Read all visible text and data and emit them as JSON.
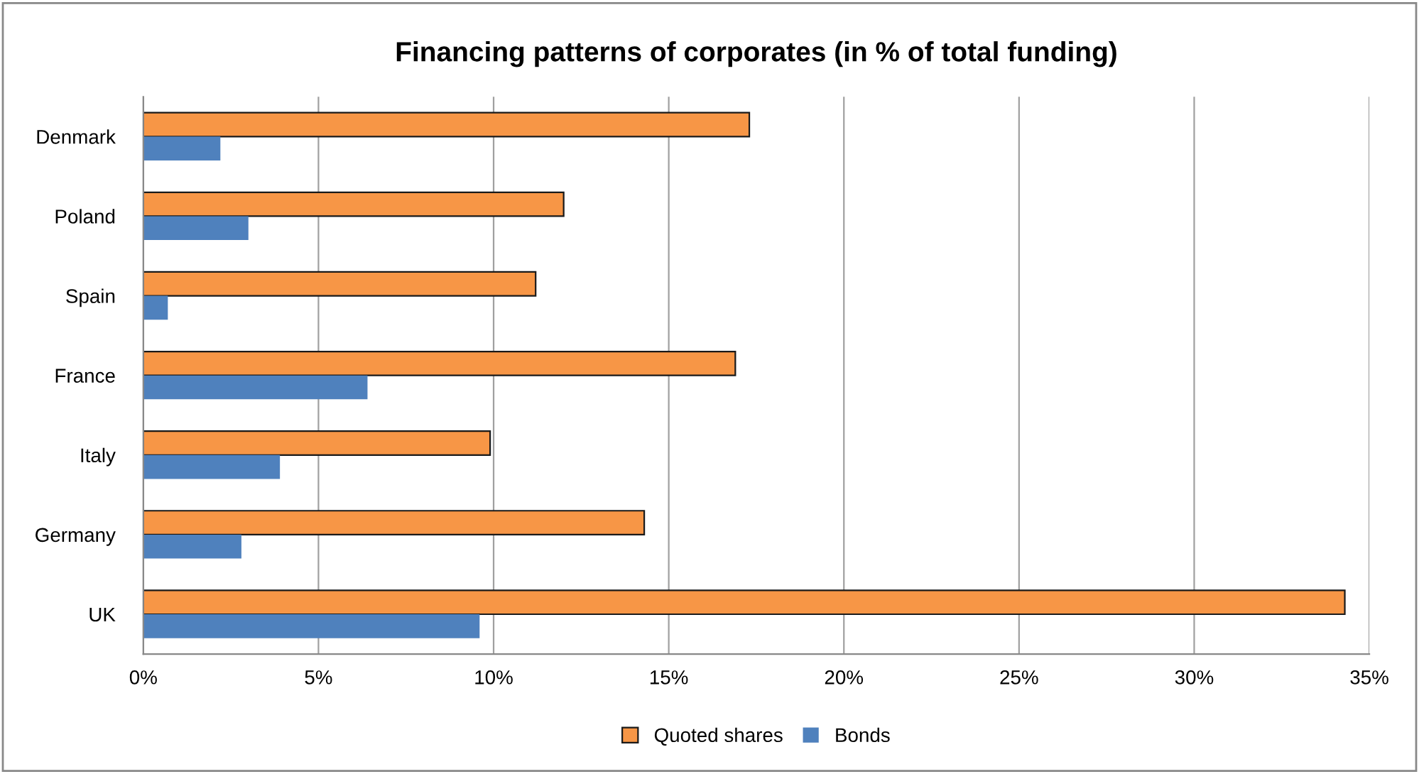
{
  "chart_data": {
    "type": "bar",
    "orientation": "horizontal",
    "title": "Financing patterns of corporates (in % of total funding)",
    "categories": [
      "Denmark",
      "Poland",
      "Spain",
      "France",
      "Italy",
      "Germany",
      "UK"
    ],
    "series": [
      {
        "name": "Quoted shares",
        "color": "#f79646",
        "values": [
          17.3,
          12.0,
          11.2,
          16.9,
          9.9,
          14.3,
          34.3
        ]
      },
      {
        "name": "Bonds",
        "color": "#4f81bd",
        "values": [
          2.2,
          3.0,
          0.7,
          6.4,
          3.9,
          2.8,
          9.6
        ]
      }
    ],
    "xlim": [
      0,
      35
    ],
    "xticks": [
      {
        "value": 0,
        "label": "0%"
      },
      {
        "value": 5,
        "label": "5%"
      },
      {
        "value": 10,
        "label": "10%"
      },
      {
        "value": 15,
        "label": "15%"
      },
      {
        "value": 20,
        "label": "20%"
      },
      {
        "value": 25,
        "label": "25%"
      },
      {
        "value": 30,
        "label": "30%"
      },
      {
        "value": 35,
        "label": "35%"
      }
    ],
    "grid": "x",
    "legend": "bottom"
  }
}
